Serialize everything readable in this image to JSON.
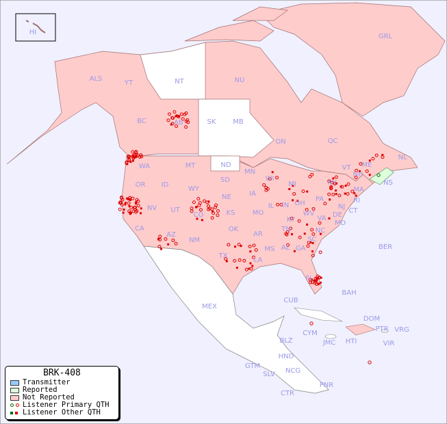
{
  "map_title": "BRK-408",
  "colors": {
    "ocean": "#f0f0ff",
    "transmitter": "#99ccff",
    "reported": "#ddffdd",
    "not_reported": "#ffcccc",
    "unlisted": "#ffffff",
    "label": "#9a9ae8",
    "listener": "#dd0000",
    "listener_alt": "#006600"
  },
  "legend": {
    "items": [
      {
        "label": "Transmitter",
        "symbol": "swatch-transmitter"
      },
      {
        "label": "Reported",
        "symbol": "swatch-reported"
      },
      {
        "label": "Not Reported",
        "symbol": "swatch-not-reported"
      },
      {
        "label": "Listener Primary QTH",
        "symbol": "circle"
      },
      {
        "label": "Listener Other QTH",
        "symbol": "square"
      }
    ]
  },
  "regions": [
    "HI",
    "ALS",
    "YT",
    "NT",
    "NU",
    "GRL",
    "BC",
    "AB",
    "SK",
    "MB",
    "ON",
    "QC",
    "NL",
    "NS",
    "WA",
    "OR",
    "ID",
    "MT",
    "ND",
    "SD",
    "WY",
    "NV",
    "UT",
    "CA",
    "AZ",
    "CO",
    "NE",
    "KS",
    "MN",
    "IA",
    "WI",
    "MI",
    "IL",
    "IN",
    "OH",
    "PA",
    "NY",
    "VT",
    "NH",
    "ME",
    "MA",
    "RI",
    "CT",
    "NJ",
    "DE",
    "MD",
    "WV",
    "VA",
    "KY",
    "MO",
    "OK",
    "NM",
    "TX",
    "AR",
    "TN",
    "NC",
    "SC",
    "MS",
    "AL",
    "GA",
    "LA",
    "FL",
    "BER",
    "BAH",
    "CUB",
    "MEX",
    "CYM",
    "JMC",
    "HTI",
    "DOM",
    "PTR",
    "VRG",
    "VIR",
    "BLZ",
    "GTM",
    "HND",
    "SLV",
    "NCG",
    "CTR",
    "PNR"
  ]
}
